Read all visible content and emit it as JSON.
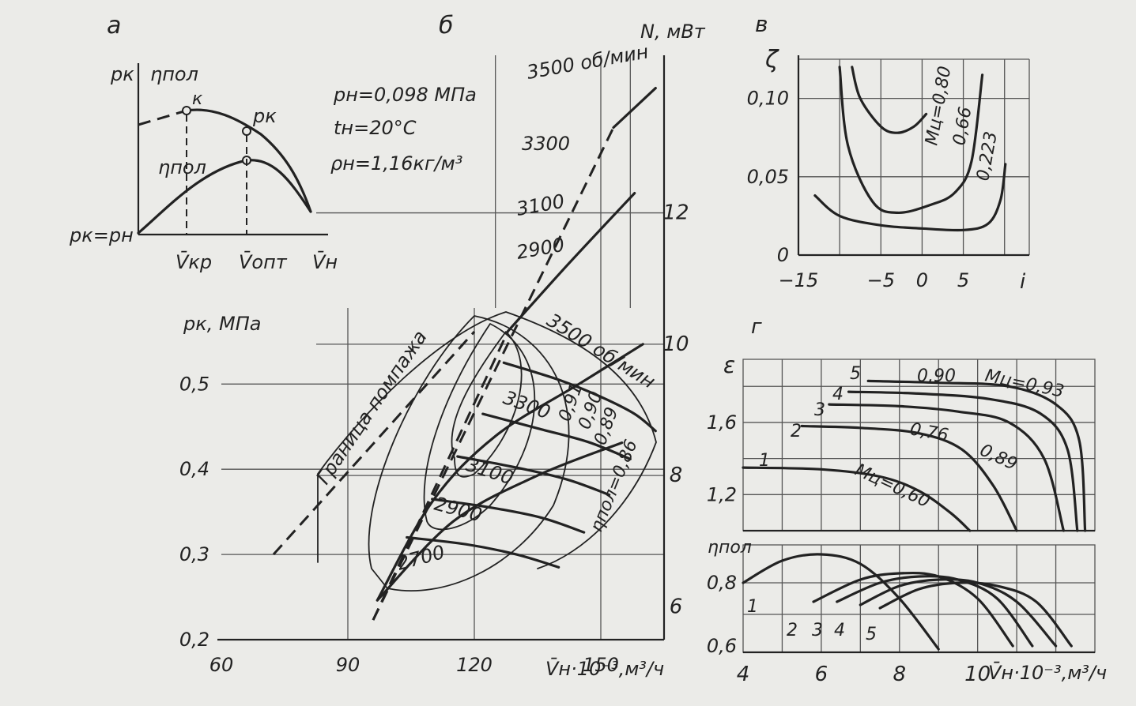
{
  "chart_data": [
    {
      "id": "a",
      "panel_label": "а",
      "type": "line",
      "y_labels": [
        "pк",
        "ηпол"
      ],
      "curves": [
        {
          "name": "pк",
          "label": "pк"
        },
        {
          "name": "ηпол",
          "label": "ηпол"
        }
      ],
      "point_label": "к",
      "origin_label": "pк=pн",
      "x_labels": [
        "V̄кр",
        "V̄опт",
        "V̄н"
      ]
    },
    {
      "id": "b",
      "panel_label": "б",
      "type": "line",
      "conditions": [
        "pн=0,098 МПа",
        "tн=20°С",
        "ρн=1,16кг/м³"
      ],
      "xlabel": "V̄н·10⁻³,м³/ч",
      "ylabel": "pк, МПа",
      "ylabel_right": "N, мВт",
      "x_ticks": [
        "60",
        "90",
        "120",
        "150"
      ],
      "y_ticks": [
        "0,2",
        "0,3",
        "0,4",
        "0,5"
      ],
      "y_right_ticks": [
        "6",
        "8",
        "10",
        "12"
      ],
      "xlim": [
        60,
        165
      ],
      "ylim": [
        0.2,
        0.58
      ],
      "y_right_lim": [
        5.5,
        14.4
      ],
      "surge_label": "Граница помпажа",
      "power_series": [
        {
          "name": "3500 об/мин",
          "x": [
            153,
            163
          ],
          "y": [
            13.3,
            13.9
          ],
          "x_dash": [
            96,
            153
          ],
          "y_dash": [
            5.8,
            13.3
          ]
        },
        {
          "name": "3300",
          "x": [
            128,
            142,
            158
          ],
          "y": [
            10.2,
            11.2,
            12.3
          ],
          "x_dash": [
            96,
            128
          ],
          "y_dash": [
            5.8,
            10.2
          ]
        },
        {
          "name": "3100",
          "x": [
            97,
            110,
            125,
            145,
            160
          ],
          "y": [
            6.1,
            7.6,
            8.6,
            9.4,
            10.0
          ]
        },
        {
          "name": "2900",
          "x": [
            97,
            115,
            135,
            155
          ],
          "y": [
            6.1,
            7.3,
            8.0,
            8.5
          ]
        }
      ],
      "pressure_series": [
        {
          "name": "3500 об/мин",
          "x": [
            127,
            140,
            150,
            158,
            163
          ],
          "y": [
            0.525,
            0.505,
            0.485,
            0.465,
            0.445
          ]
        },
        {
          "name": "3300",
          "x": [
            122,
            135,
            147,
            157
          ],
          "y": [
            0.465,
            0.448,
            0.432,
            0.412
          ]
        },
        {
          "name": "3100",
          "x": [
            116,
            130,
            142,
            152
          ],
          "y": [
            0.415,
            0.402,
            0.388,
            0.37
          ]
        },
        {
          "name": "2900",
          "x": [
            110,
            124,
            136,
            146
          ],
          "y": [
            0.365,
            0.355,
            0.343,
            0.326
          ]
        },
        {
          "name": "2700",
          "x": [
            104,
            118,
            130,
            140
          ],
          "y": [
            0.32,
            0.312,
            0.3,
            0.285
          ]
        }
      ],
      "pressure_labels": [
        "3500 об/мин",
        "3300",
        "3100",
        "2900",
        "2700"
      ],
      "efficiency_labels": [
        "0,91",
        "0,90",
        "0,89",
        "ηпол=0,86"
      ]
    },
    {
      "id": "v",
      "panel_label": "в",
      "type": "line",
      "xlabel": "i",
      "ylabel": "ζ",
      "x_ticks": [
        "−15",
        "−5",
        "0",
        "5"
      ],
      "y_ticks": [
        "0",
        "0,05",
        "0,10"
      ],
      "xlim": [
        -15,
        13
      ],
      "ylim": [
        0,
        0.125
      ],
      "series": [
        {
          "name": "Mц=0,80",
          "x": [
            -8.5,
            -7.5,
            -5,
            -3,
            -1,
            0.5
          ],
          "y": [
            0.12,
            0.1,
            0.082,
            0.078,
            0.082,
            0.09
          ]
        },
        {
          "name": "0,66",
          "x": [
            -10,
            -9,
            -6,
            -3,
            1,
            4,
            6,
            7.3
          ],
          "y": [
            0.12,
            0.07,
            0.034,
            0.027,
            0.032,
            0.04,
            0.06,
            0.115
          ]
        },
        {
          "name": "0,223",
          "x": [
            -13,
            -10,
            -5,
            0,
            5,
            8,
            9.5,
            10.1
          ],
          "y": [
            0.038,
            0.025,
            0.019,
            0.017,
            0.016,
            0.02,
            0.035,
            0.058
          ]
        }
      ],
      "series_labels": [
        "Mц=0,80",
        "0,66",
        "0,223"
      ]
    },
    {
      "id": "g",
      "panel_label": "г",
      "type": "line",
      "xlabel": "V̄н·10⁻³,м³/ч",
      "x_ticks": [
        "4",
        "6",
        "8",
        "10"
      ],
      "xlim": [
        4,
        13
      ],
      "top": {
        "ylabel": "ε",
        "y_ticks": [
          "1,2",
          "1,6"
        ],
        "ylim": [
          1.0,
          1.95
        ],
        "series": [
          {
            "name": "1",
            "x": [
              4,
              6,
              7.5,
              8.5,
              9.3,
              9.8
            ],
            "y": [
              1.35,
              1.34,
              1.3,
              1.22,
              1.1,
              1.0
            ]
          },
          {
            "name": "2",
            "x": [
              5.5,
              7,
              8.5,
              9.6,
              10.4,
              11.0
            ],
            "y": [
              1.58,
              1.57,
              1.54,
              1.45,
              1.25,
              1.0
            ]
          },
          {
            "name": "3",
            "x": [
              6.2,
              8,
              9.5,
              10.8,
              11.7,
              12.2
            ],
            "y": [
              1.7,
              1.69,
              1.66,
              1.6,
              1.4,
              1.0
            ]
          },
          {
            "name": "4",
            "x": [
              6.7,
              8.5,
              10.3,
              11.6,
              12.3,
              12.55
            ],
            "y": [
              1.77,
              1.76,
              1.73,
              1.65,
              1.45,
              1.0
            ]
          },
          {
            "name": "5",
            "x": [
              7.2,
              9,
              10.8,
              12.0,
              12.6,
              12.75
            ],
            "y": [
              1.83,
              1.82,
              1.8,
              1.7,
              1.5,
              1.0
            ]
          }
        ],
        "curve_labels": [
          "1",
          "2",
          "3",
          "4",
          "5"
        ],
        "mach_labels": [
          "Mц=0,93",
          "0,90",
          "0,76",
          "0,89",
          "Mц=0,60"
        ]
      },
      "bottom": {
        "ylabel": "ηпол",
        "y_ticks": [
          "0,6",
          "0,8"
        ],
        "ylim": [
          0.58,
          0.92
        ],
        "series": [
          {
            "name": "1",
            "x": [
              4,
              5,
              6,
              7,
              8,
              9
            ],
            "y": [
              0.8,
              0.87,
              0.89,
              0.86,
              0.75,
              0.59
            ]
          },
          {
            "name": "2",
            "x": [
              5.8,
              7,
              8,
              9,
              10,
              10.9
            ],
            "y": [
              0.74,
              0.81,
              0.83,
              0.82,
              0.75,
              0.6
            ]
          },
          {
            "name": "3",
            "x": [
              6.4,
              7.5,
              8.5,
              9.5,
              10.5,
              11.4
            ],
            "y": [
              0.74,
              0.8,
              0.82,
              0.81,
              0.75,
              0.6
            ]
          },
          {
            "name": "4",
            "x": [
              7.0,
              8,
              9,
              10,
              11,
              12.0
            ],
            "y": [
              0.73,
              0.79,
              0.81,
              0.8,
              0.74,
              0.6
            ]
          },
          {
            "name": "5",
            "x": [
              7.5,
              8.5,
              9.5,
              10.5,
              11.5,
              12.4
            ],
            "y": [
              0.72,
              0.78,
              0.8,
              0.79,
              0.74,
              0.6
            ]
          }
        ],
        "curve_labels": [
          "1",
          "2",
          "3",
          "4",
          "5"
        ]
      }
    }
  ]
}
